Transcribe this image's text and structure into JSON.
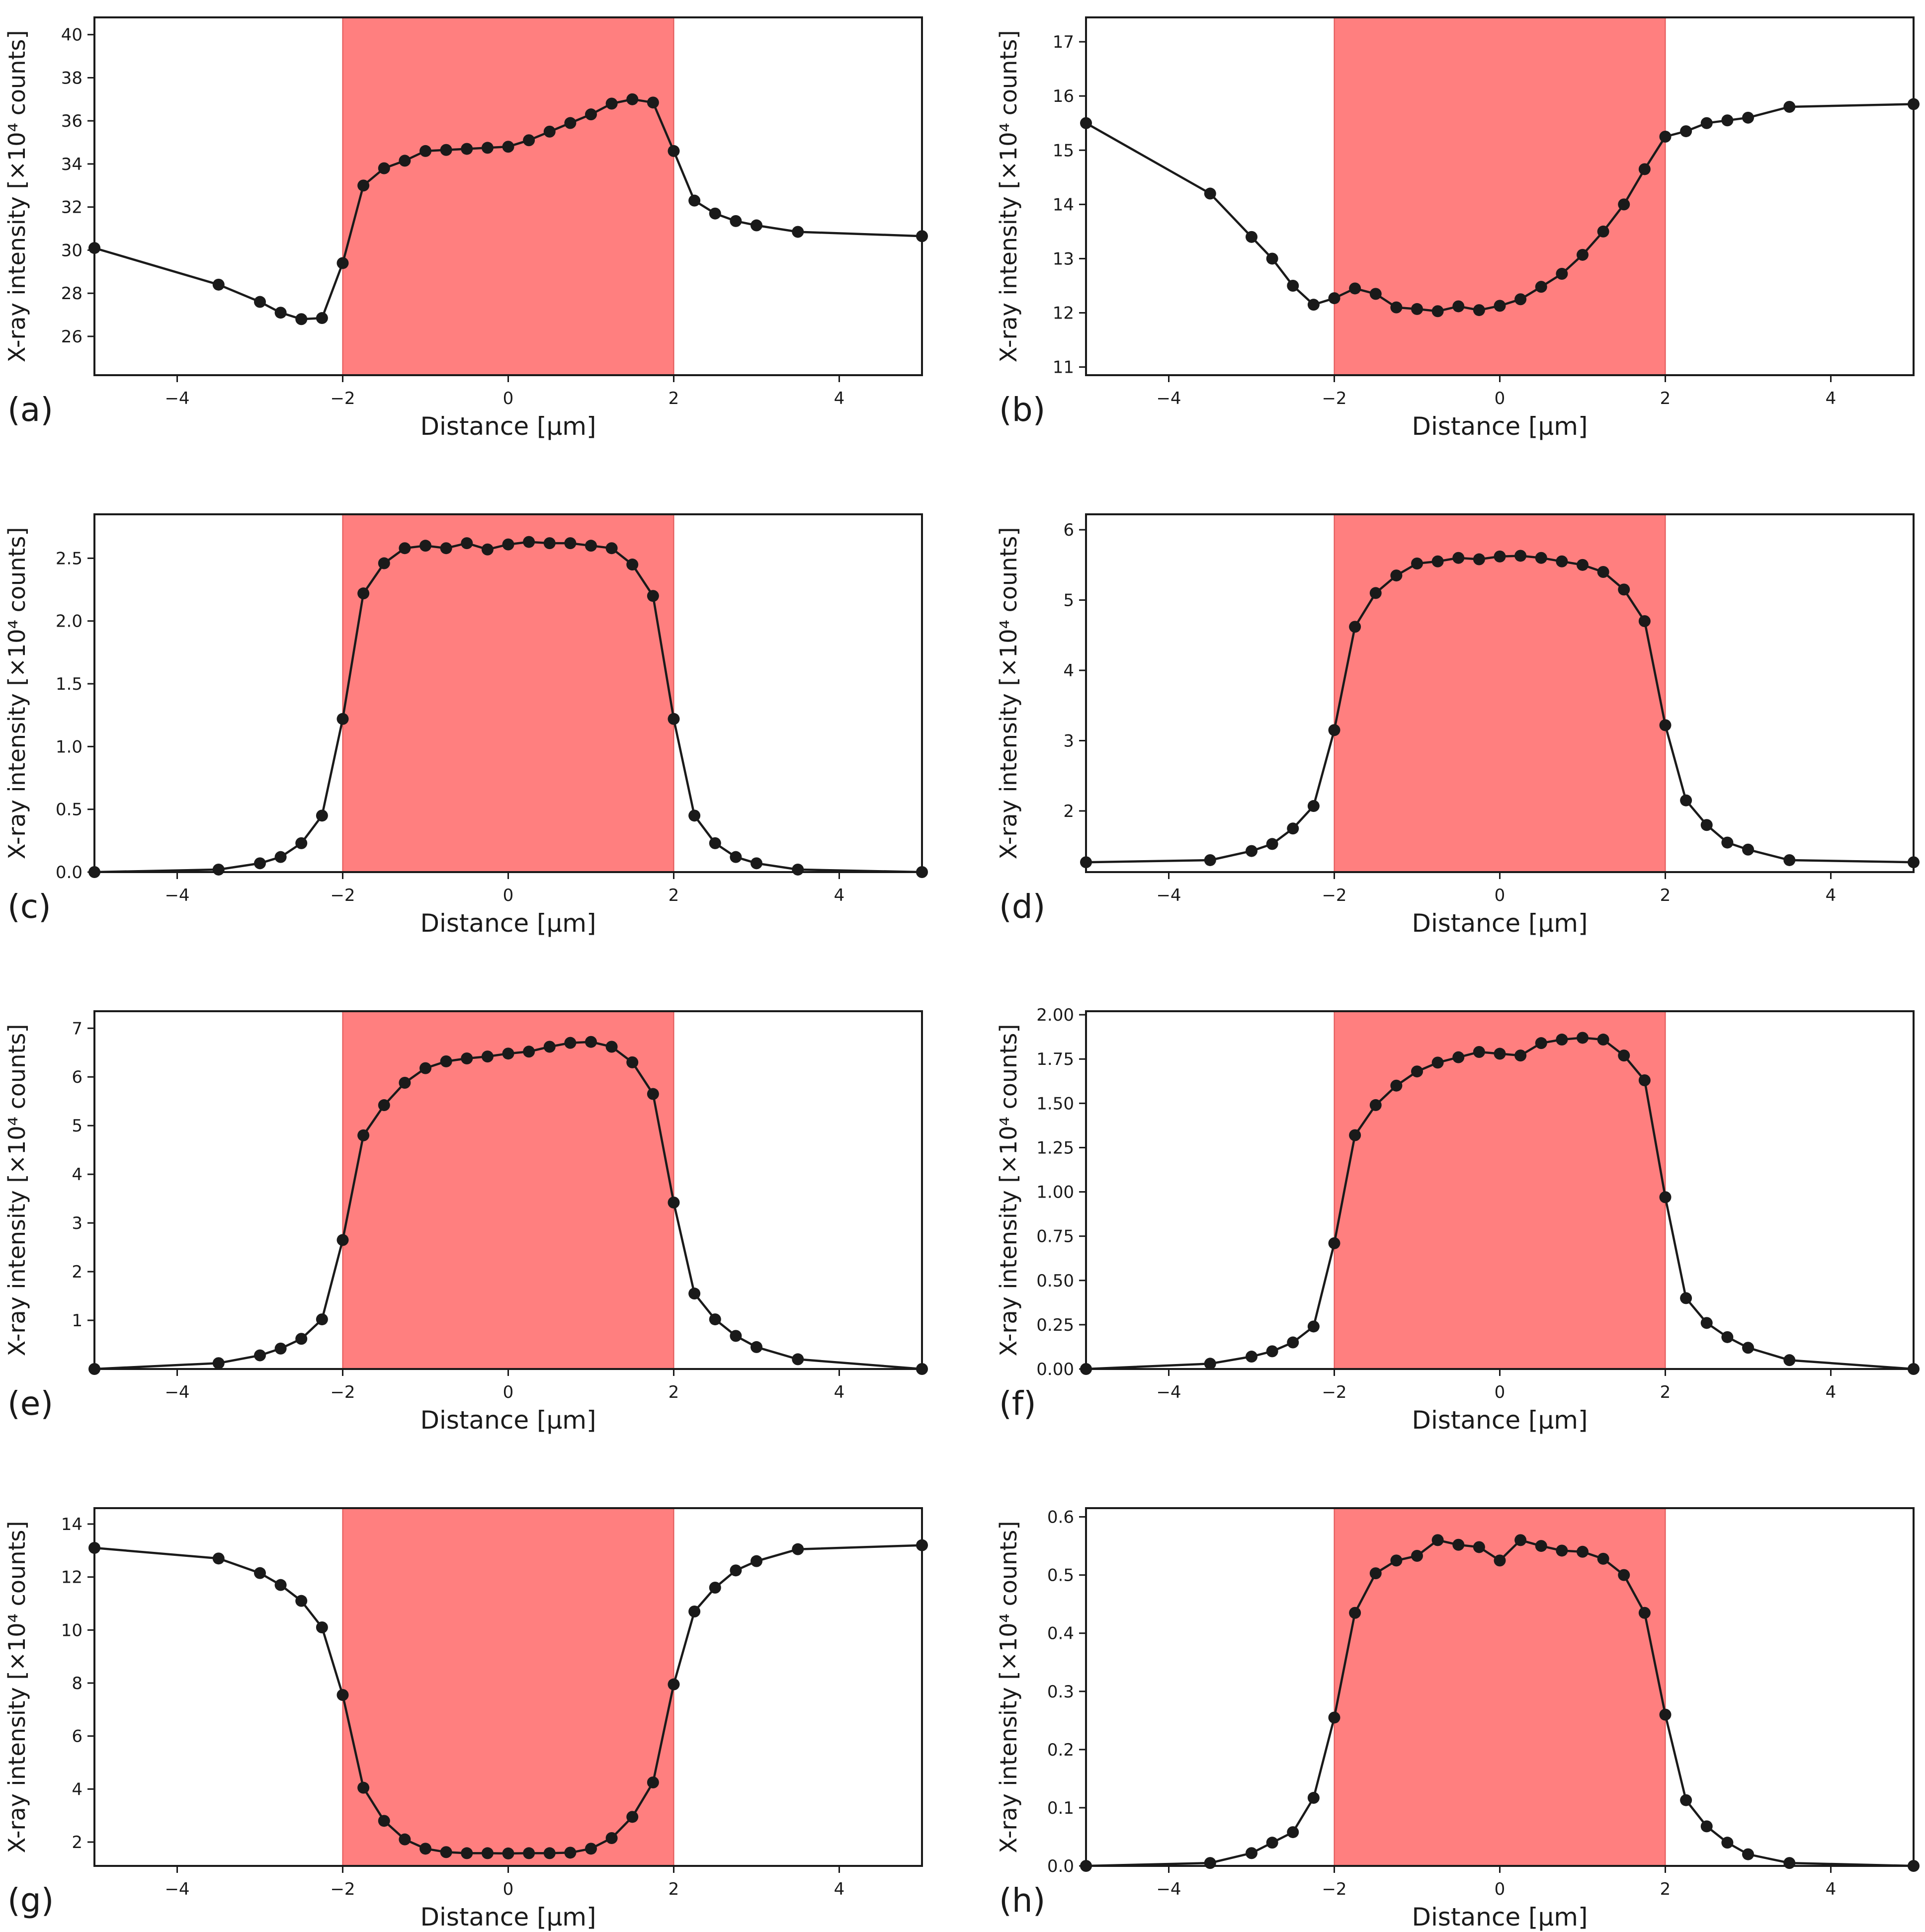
{
  "figure": {
    "shade_color": "#ff7f7f",
    "line_color": "#1a1a1a",
    "marker_color": "#1a1a1a",
    "axis_color": "#1a1a1a"
  },
  "chart_data": [
    {
      "type": "line",
      "panel_label": "(a)",
      "xlabel": "Distance [μm]",
      "ylabel": "X-ray intensity [×10⁴ counts]",
      "xlim": [
        -5,
        5
      ],
      "ylim": [
        24.2,
        40.8
      ],
      "xticks": [
        -4,
        -2,
        0,
        2,
        4
      ],
      "xtick_labels": [
        "−4",
        "−2",
        "0",
        "2",
        "4"
      ],
      "yticks": [
        26,
        28,
        30,
        32,
        34,
        36,
        38,
        40
      ],
      "ytick_labels": [
        "26",
        "28",
        "30",
        "32",
        "34",
        "36",
        "38",
        "40"
      ],
      "shaded_region": [
        -2,
        2
      ],
      "x": [
        -5,
        -3.5,
        -3,
        -2.75,
        -2.5,
        -2.25,
        -2,
        -1.75,
        -1.5,
        -1.25,
        -1,
        -0.75,
        -0.5,
        -0.25,
        0,
        0.25,
        0.5,
        0.75,
        1,
        1.25,
        1.5,
        1.75,
        2,
        2.25,
        2.5,
        2.75,
        3,
        3.5,
        5
      ],
      "y": [
        30.1,
        28.4,
        27.6,
        27.1,
        26.8,
        26.85,
        29.4,
        33.0,
        33.8,
        34.15,
        34.6,
        34.65,
        34.7,
        34.75,
        34.8,
        35.1,
        35.5,
        35.9,
        36.3,
        36.8,
        37.0,
        36.85,
        34.6,
        32.3,
        31.7,
        31.35,
        31.15,
        30.85,
        30.65
      ]
    },
    {
      "type": "line",
      "panel_label": "(b)",
      "xlabel": "Distance [μm]",
      "ylabel": "X-ray intensity [×10⁴ counts]",
      "xlim": [
        -5,
        5
      ],
      "ylim": [
        10.85,
        17.45
      ],
      "xticks": [
        -4,
        -2,
        0,
        2,
        4
      ],
      "xtick_labels": [
        "−4",
        "−2",
        "0",
        "2",
        "4"
      ],
      "yticks": [
        11,
        12,
        13,
        14,
        15,
        16,
        17
      ],
      "ytick_labels": [
        "11",
        "12",
        "13",
        "14",
        "15",
        "16",
        "17"
      ],
      "shaded_region": [
        -2,
        2
      ],
      "x": [
        -5,
        -3.5,
        -3,
        -2.75,
        -2.5,
        -2.25,
        -2,
        -1.75,
        -1.5,
        -1.25,
        -1,
        -0.75,
        -0.5,
        -0.25,
        0,
        0.25,
        0.5,
        0.75,
        1,
        1.25,
        1.5,
        1.75,
        2,
        2.25,
        2.5,
        2.75,
        3,
        3.5,
        5
      ],
      "y": [
        15.5,
        14.2,
        13.4,
        13.0,
        12.5,
        12.15,
        12.27,
        12.45,
        12.35,
        12.1,
        12.07,
        12.03,
        12.12,
        12.05,
        12.13,
        12.25,
        12.48,
        12.72,
        13.07,
        13.5,
        14.0,
        14.65,
        15.25,
        15.35,
        15.5,
        15.55,
        15.6,
        15.8,
        15.85
      ]
    },
    {
      "type": "line",
      "panel_label": "(c)",
      "xlabel": "Distance [μm]",
      "ylabel": "X-ray intensity [×10⁴ counts]",
      "xlim": [
        -5,
        5
      ],
      "ylim": [
        0,
        2.85
      ],
      "xticks": [
        -4,
        -2,
        0,
        2,
        4
      ],
      "xtick_labels": [
        "−4",
        "−2",
        "0",
        "2",
        "4"
      ],
      "yticks": [
        0,
        0.5,
        1,
        1.5,
        2,
        2.5
      ],
      "ytick_labels": [
        "0.0",
        "0.5",
        "1.0",
        "1.5",
        "2.0",
        "2.5"
      ],
      "shaded_region": [
        -2,
        2
      ],
      "x": [
        -5,
        -3.5,
        -3,
        -2.75,
        -2.5,
        -2.25,
        -2,
        -1.75,
        -1.5,
        -1.25,
        -1,
        -0.75,
        -0.5,
        -0.25,
        0,
        0.25,
        0.5,
        0.75,
        1,
        1.25,
        1.5,
        1.75,
        2,
        2.25,
        2.5,
        2.75,
        3,
        3.5,
        5
      ],
      "y": [
        0.0,
        0.02,
        0.07,
        0.12,
        0.23,
        0.45,
        1.22,
        2.22,
        2.46,
        2.58,
        2.6,
        2.58,
        2.62,
        2.57,
        2.61,
        2.63,
        2.62,
        2.62,
        2.6,
        2.58,
        2.45,
        2.2,
        1.22,
        0.45,
        0.23,
        0.12,
        0.07,
        0.02,
        0.0
      ]
    },
    {
      "type": "line",
      "panel_label": "(d)",
      "xlabel": "Distance [μm]",
      "ylabel": "X-ray intensity [×10⁴ counts]",
      "xlim": [
        -5,
        5
      ],
      "ylim": [
        1.13,
        6.22
      ],
      "xticks": [
        -4,
        -2,
        0,
        2,
        4
      ],
      "xtick_labels": [
        "−4",
        "−2",
        "0",
        "2",
        "4"
      ],
      "yticks": [
        2,
        3,
        4,
        5,
        6
      ],
      "ytick_labels": [
        "2",
        "3",
        "4",
        "5",
        "6"
      ],
      "shaded_region": [
        -2,
        2
      ],
      "x": [
        -5,
        -3.5,
        -3,
        -2.75,
        -2.5,
        -2.25,
        -2,
        -1.75,
        -1.5,
        -1.25,
        -1,
        -0.75,
        -0.5,
        -0.25,
        0,
        0.25,
        0.5,
        0.75,
        1,
        1.25,
        1.5,
        1.75,
        2,
        2.25,
        2.5,
        2.75,
        3,
        3.5,
        5
      ],
      "y": [
        1.27,
        1.3,
        1.43,
        1.53,
        1.75,
        2.07,
        3.15,
        4.62,
        5.1,
        5.35,
        5.52,
        5.55,
        5.6,
        5.58,
        5.62,
        5.63,
        5.6,
        5.55,
        5.5,
        5.4,
        5.15,
        4.7,
        3.22,
        2.15,
        1.8,
        1.55,
        1.45,
        1.3,
        1.27
      ]
    },
    {
      "type": "line",
      "panel_label": "(e)",
      "xlabel": "Distance [μm]",
      "ylabel": "X-ray intensity [×10⁴ counts]",
      "xlim": [
        -5,
        5
      ],
      "ylim": [
        0,
        7.35
      ],
      "xticks": [
        -4,
        -2,
        0,
        2,
        4
      ],
      "xtick_labels": [
        "−4",
        "−2",
        "0",
        "2",
        "4"
      ],
      "yticks": [
        1,
        2,
        3,
        4,
        5,
        6,
        7
      ],
      "ytick_labels": [
        "1",
        "2",
        "3",
        "4",
        "5",
        "6",
        "7"
      ],
      "shaded_region": [
        -2,
        2
      ],
      "x": [
        -5,
        -3.5,
        -3,
        -2.75,
        -2.5,
        -2.25,
        -2,
        -1.75,
        -1.5,
        -1.25,
        -1,
        -0.75,
        -0.5,
        -0.25,
        0,
        0.25,
        0.5,
        0.75,
        1,
        1.25,
        1.5,
        1.75,
        2,
        2.25,
        2.5,
        2.75,
        3,
        3.5,
        5
      ],
      "y": [
        0.0,
        0.12,
        0.28,
        0.42,
        0.62,
        1.02,
        2.65,
        4.8,
        5.42,
        5.88,
        6.18,
        6.32,
        6.38,
        6.42,
        6.48,
        6.52,
        6.62,
        6.7,
        6.72,
        6.62,
        6.3,
        5.65,
        3.42,
        1.55,
        1.02,
        0.68,
        0.45,
        0.2,
        0.0
      ]
    },
    {
      "type": "line",
      "panel_label": "(f)",
      "xlabel": "Distance [μm]",
      "ylabel": "X-ray intensity [×10⁴ counts]",
      "xlim": [
        -5,
        5
      ],
      "ylim": [
        0,
        2.02
      ],
      "xticks": [
        -4,
        -2,
        0,
        2,
        4
      ],
      "xtick_labels": [
        "−4",
        "−2",
        "0",
        "2",
        "4"
      ],
      "yticks": [
        0,
        0.25,
        0.5,
        0.75,
        1,
        1.25,
        1.5,
        1.75,
        2
      ],
      "ytick_labels": [
        "0.00",
        "0.25",
        "0.50",
        "0.75",
        "1.00",
        "1.25",
        "1.50",
        "1.75",
        "2.00"
      ],
      "shaded_region": [
        -2,
        2
      ],
      "x": [
        -5,
        -3.5,
        -3,
        -2.75,
        -2.5,
        -2.25,
        -2,
        -1.75,
        -1.5,
        -1.25,
        -1,
        -0.75,
        -0.5,
        -0.25,
        0,
        0.25,
        0.5,
        0.75,
        1,
        1.25,
        1.5,
        1.75,
        2,
        2.25,
        2.5,
        2.75,
        3,
        3.5,
        5
      ],
      "y": [
        0.0,
        0.03,
        0.07,
        0.1,
        0.15,
        0.24,
        0.71,
        1.32,
        1.49,
        1.6,
        1.68,
        1.73,
        1.76,
        1.79,
        1.78,
        1.77,
        1.84,
        1.86,
        1.87,
        1.86,
        1.77,
        1.63,
        0.97,
        0.4,
        0.26,
        0.18,
        0.12,
        0.05,
        0.0
      ]
    },
    {
      "type": "line",
      "panel_label": "(g)",
      "xlabel": "Distance [μm]",
      "ylabel": "X-ray intensity [×10⁴ counts]",
      "xlim": [
        -5,
        5
      ],
      "ylim": [
        1.1,
        14.6
      ],
      "xticks": [
        -4,
        -2,
        0,
        2,
        4
      ],
      "xtick_labels": [
        "−4",
        "−2",
        "0",
        "2",
        "4"
      ],
      "yticks": [
        2,
        4,
        6,
        8,
        10,
        12,
        14
      ],
      "ytick_labels": [
        "2",
        "4",
        "6",
        "8",
        "10",
        "12",
        "14"
      ],
      "shaded_region": [
        -2,
        2
      ],
      "x": [
        -5,
        -3.5,
        -3,
        -2.75,
        -2.5,
        -2.25,
        -2,
        -1.75,
        -1.5,
        -1.25,
        -1,
        -0.75,
        -0.5,
        -0.25,
        0,
        0.25,
        0.5,
        0.75,
        1,
        1.25,
        1.5,
        1.75,
        2,
        2.25,
        2.5,
        2.75,
        3,
        3.5,
        5
      ],
      "y": [
        13.1,
        12.7,
        12.15,
        11.7,
        11.1,
        10.1,
        7.55,
        4.05,
        2.8,
        2.1,
        1.75,
        1.62,
        1.58,
        1.58,
        1.57,
        1.58,
        1.58,
        1.6,
        1.75,
        2.15,
        2.95,
        4.25,
        7.95,
        10.7,
        11.6,
        12.25,
        12.6,
        13.05,
        13.2
      ]
    },
    {
      "type": "line",
      "panel_label": "(h)",
      "xlabel": "Distance [μm]",
      "ylabel": "X-ray intensity [×10⁴ counts]",
      "xlim": [
        -5,
        5
      ],
      "ylim": [
        0,
        0.615
      ],
      "xticks": [
        -4,
        -2,
        0,
        2,
        4
      ],
      "xtick_labels": [
        "−4",
        "−2",
        "0",
        "2",
        "4"
      ],
      "yticks": [
        0,
        0.1,
        0.2,
        0.3,
        0.4,
        0.5,
        0.6
      ],
      "ytick_labels": [
        "0.0",
        "0.1",
        "0.2",
        "0.3",
        "0.4",
        "0.5",
        "0.6"
      ],
      "shaded_region": [
        -2,
        2
      ],
      "x": [
        -5,
        -3.5,
        -3,
        -2.75,
        -2.5,
        -2.25,
        -2,
        -1.75,
        -1.5,
        -1.25,
        -1,
        -0.75,
        -0.5,
        -0.25,
        0,
        0.25,
        0.5,
        0.75,
        1,
        1.25,
        1.5,
        1.75,
        2,
        2.25,
        2.5,
        2.75,
        3,
        3.5,
        5
      ],
      "y": [
        0.0,
        0.005,
        0.022,
        0.04,
        0.058,
        0.117,
        0.255,
        0.435,
        0.503,
        0.525,
        0.533,
        0.56,
        0.552,
        0.548,
        0.525,
        0.56,
        0.55,
        0.542,
        0.54,
        0.528,
        0.5,
        0.435,
        0.26,
        0.113,
        0.068,
        0.04,
        0.02,
        0.005,
        0.0
      ]
    }
  ]
}
